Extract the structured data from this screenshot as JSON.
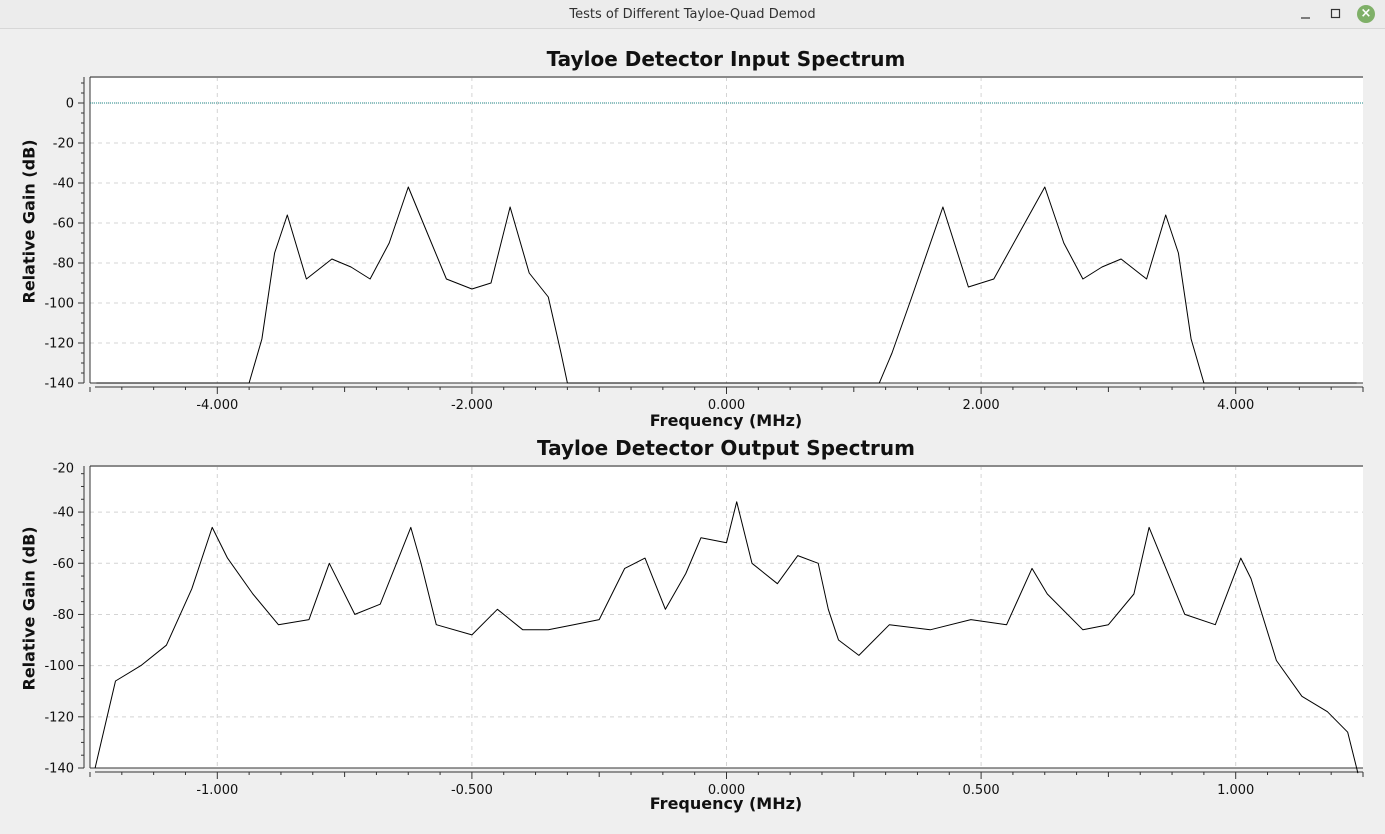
{
  "window": {
    "title": "Tests of Different Tayloe-Quad Demod",
    "minimize_icon": "minimize-icon",
    "maximize_icon": "maximize-icon",
    "close_icon": "close-icon",
    "close_color": "#7fb068"
  },
  "chart_data": [
    {
      "type": "line",
      "title": "Tayloe Detector Input Spectrum",
      "xlabel": "Frequency (MHz)",
      "ylabel": "Relative Gain (dB)",
      "xlim": [
        -5.0,
        5.0
      ],
      "ylim": [
        -140,
        13
      ],
      "xticks": [
        -4.0,
        -2.0,
        0.0,
        2.0,
        4.0
      ],
      "xtick_labels": [
        "-4.000",
        "-2.000",
        "0.000",
        "2.000",
        "4.000"
      ],
      "yticks": [
        0,
        -20,
        -40,
        -60,
        -80,
        -100,
        -120,
        -140
      ],
      "ytick_labels": [
        "0",
        "-20",
        "-40",
        "-60",
        "-80",
        "-100",
        "-120",
        "-140"
      ],
      "grid": true,
      "reference_line": {
        "y": 0,
        "color": "#1f8a8a"
      },
      "line_color": "#000000",
      "series": [
        {
          "x": [
            -4.95,
            -3.75,
            -3.65,
            -3.55,
            -3.45,
            -3.3,
            -3.1,
            -2.95,
            -2.8,
            -2.65,
            -2.5,
            -2.35,
            -2.2,
            -2.0,
            -1.85,
            -1.7,
            -1.55,
            -1.4,
            -1.3,
            -1.25,
            -0.1,
            0.1,
            1.2,
            1.3,
            1.45,
            1.7,
            1.9,
            2.1,
            2.3,
            2.5,
            2.65,
            2.8,
            2.95,
            3.1,
            3.3,
            3.45,
            3.55,
            3.65,
            3.75,
            4.95
          ],
          "y": [
            -140,
            -140,
            -118,
            -75,
            -56,
            -88,
            -78,
            -82,
            -88,
            -70,
            -42,
            -65,
            -88,
            -93,
            -90,
            -52,
            -85,
            -97,
            -125,
            -140,
            -140,
            -140,
            -140,
            -125,
            -98,
            -52,
            -92,
            -88,
            -65,
            -42,
            -70,
            -88,
            -82,
            -78,
            -88,
            -56,
            -75,
            -118,
            -140,
            -140
          ]
        }
      ]
    },
    {
      "type": "line",
      "title": "Tayloe Detector Output Spectrum",
      "xlabel": "Frequency (MHz)",
      "ylabel": "Relative Gain (dB)",
      "xlim": [
        -1.25,
        1.25
      ],
      "ylim": [
        -140,
        -22
      ],
      "xticks": [
        -1.0,
        -0.5,
        0.0,
        0.5,
        1.0
      ],
      "xtick_labels": [
        "-1.000",
        "-0.500",
        "0.000",
        "0.500",
        "1.000"
      ],
      "yticks": [
        -20,
        -40,
        -60,
        -80,
        -100,
        -120,
        -140
      ],
      "ytick_labels": [
        "-20",
        "-40",
        "-60",
        "-80",
        "-100",
        "-120",
        "-140"
      ],
      "grid": true,
      "line_color": "#000000",
      "series": [
        {
          "x": [
            -1.24,
            -1.2,
            -1.15,
            -1.1,
            -1.05,
            -1.01,
            -0.98,
            -0.93,
            -0.88,
            -0.82,
            -0.78,
            -0.73,
            -0.68,
            -0.62,
            -0.6,
            -0.57,
            -0.5,
            -0.45,
            -0.4,
            -0.35,
            -0.3,
            -0.25,
            -0.2,
            -0.16,
            -0.12,
            -0.08,
            -0.05,
            0.0,
            0.02,
            0.05,
            0.1,
            0.14,
            0.18,
            0.2,
            0.22,
            0.26,
            0.32,
            0.4,
            0.48,
            0.55,
            0.6,
            0.63,
            0.7,
            0.75,
            0.8,
            0.83,
            0.9,
            0.96,
            1.01,
            1.03,
            1.08,
            1.13,
            1.18,
            1.22,
            1.24
          ],
          "y": [
            -140,
            -106,
            -100,
            -92,
            -70,
            -46,
            -58,
            -72,
            -84,
            -82,
            -60,
            -80,
            -76,
            -46,
            -60,
            -84,
            -88,
            -78,
            -86,
            -86,
            -84,
            -82,
            -62,
            -58,
            -78,
            -64,
            -50,
            -52,
            -36,
            -60,
            -68,
            -57,
            -60,
            -78,
            -90,
            -96,
            -84,
            -86,
            -82,
            -84,
            -62,
            -72,
            -86,
            -84,
            -72,
            -46,
            -80,
            -84,
            -58,
            -66,
            -98,
            -112,
            -118,
            -126,
            -142
          ]
        }
      ]
    }
  ]
}
